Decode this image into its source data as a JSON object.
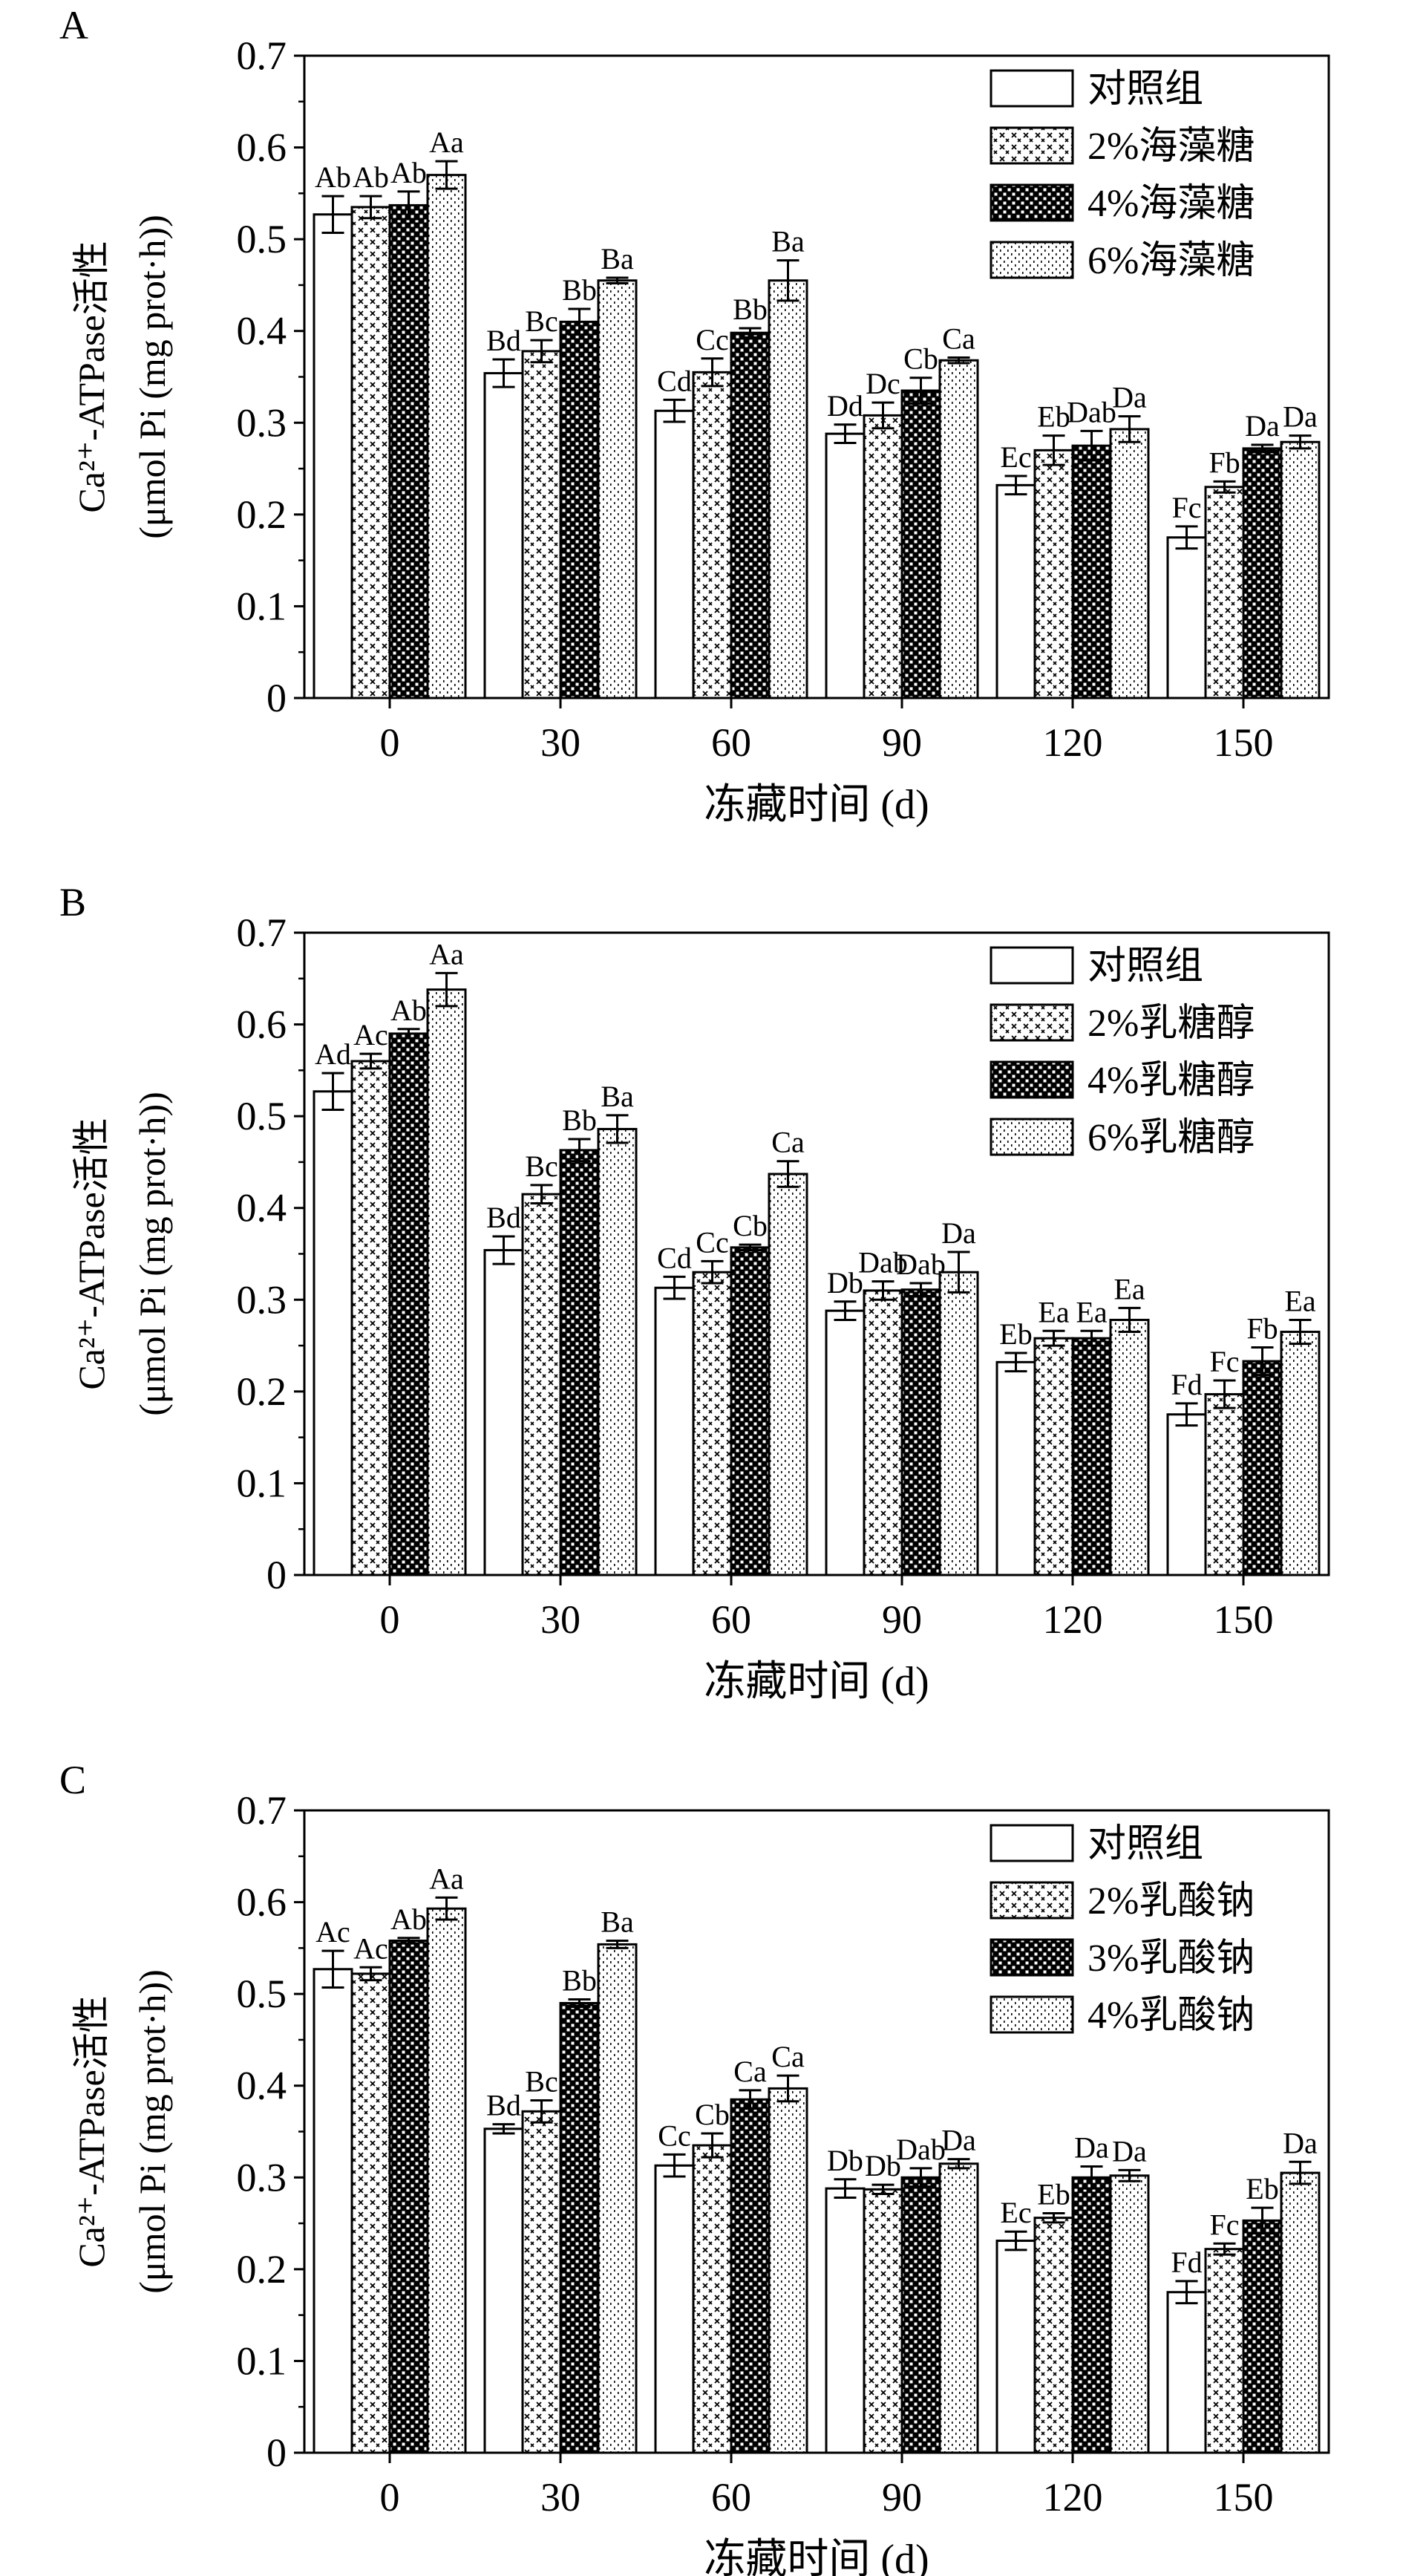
{
  "figure": {
    "y_label_line1": "Ca²⁺-ATPase活性",
    "y_label_line2": "(μmol Pi (mg prot·h))"
  },
  "chart_data": [
    {
      "type": "bar",
      "panel_label": "A",
      "title": "",
      "xlabel": "冻藏时间 (d)",
      "ylabel": "Ca²⁺-ATPase活性 (μmol Pi (mg prot·h))",
      "categories": [
        "0",
        "30",
        "60",
        "90",
        "120",
        "150"
      ],
      "ylim": [
        0,
        0.7
      ],
      "yticks": [
        "0",
        "0.1",
        "0.2",
        "0.3",
        "0.4",
        "0.5",
        "0.6",
        "0.7"
      ],
      "legend_position": "top-right",
      "series": [
        {
          "name": "对照组",
          "pattern": "blank",
          "values": [
            0.527,
            0.354,
            0.313,
            0.288,
            0.232,
            0.175
          ],
          "errors": [
            0.02,
            0.015,
            0.012,
            0.01,
            0.01,
            0.012
          ],
          "labels": [
            "Ab",
            "Bd",
            "Cd",
            "Dd",
            "Ec",
            "Fc"
          ]
        },
        {
          "name": "2%海藻糖",
          "pattern": "cross",
          "values": [
            0.535,
            0.378,
            0.355,
            0.308,
            0.27,
            0.23
          ],
          "errors": [
            0.012,
            0.012,
            0.015,
            0.014,
            0.016,
            0.006
          ],
          "labels": [
            "Ab",
            "Bc",
            "Cc",
            "Dc",
            "Eb",
            "Fb"
          ]
        },
        {
          "name": "4%海藻糖",
          "pattern": "check",
          "values": [
            0.537,
            0.41,
            0.398,
            0.335,
            0.275,
            0.272
          ],
          "errors": [
            0.015,
            0.014,
            0.005,
            0.014,
            0.016,
            0.004
          ],
          "labels": [
            "Ab",
            "Bb",
            "Bb",
            "Cb",
            "Dab",
            "Da"
          ]
        },
        {
          "name": "6%海藻糖",
          "pattern": "dots",
          "values": [
            0.57,
            0.455,
            0.455,
            0.368,
            0.293,
            0.279
          ],
          "errors": [
            0.015,
            0.003,
            0.022,
            0.003,
            0.014,
            0.007
          ],
          "labels": [
            "Aa",
            "Ba",
            "Ba",
            "Ca",
            "Da",
            "Da"
          ]
        }
      ]
    },
    {
      "type": "bar",
      "panel_label": "B",
      "title": "",
      "xlabel": "冻藏时间 (d)",
      "ylabel": "Ca²⁺-ATPase活性 (μmol Pi (mg prot·h))",
      "categories": [
        "0",
        "30",
        "60",
        "90",
        "120",
        "150"
      ],
      "ylim": [
        0,
        0.7
      ],
      "yticks": [
        "0",
        "0.1",
        "0.2",
        "0.3",
        "0.4",
        "0.5",
        "0.6",
        "0.7"
      ],
      "legend_position": "top-right",
      "series": [
        {
          "name": "对照组",
          "pattern": "blank",
          "values": [
            0.527,
            0.354,
            0.313,
            0.288,
            0.232,
            0.175
          ],
          "errors": [
            0.02,
            0.015,
            0.012,
            0.01,
            0.01,
            0.012
          ],
          "labels": [
            "Ad",
            "Bd",
            "Cd",
            "Db",
            "Eb",
            "Fd"
          ]
        },
        {
          "name": "2%乳糖醇",
          "pattern": "cross",
          "values": [
            0.56,
            0.415,
            0.33,
            0.31,
            0.258,
            0.197
          ],
          "errors": [
            0.008,
            0.01,
            0.012,
            0.01,
            0.008,
            0.015
          ],
          "labels": [
            "Ac",
            "Bc",
            "Cc",
            "Dab",
            "Ea",
            "Fc"
          ]
        },
        {
          "name": "4%乳糖醇",
          "pattern": "check",
          "values": [
            0.59,
            0.463,
            0.357,
            0.311,
            0.258,
            0.233
          ],
          "errors": [
            0.005,
            0.012,
            0.003,
            0.007,
            0.008,
            0.015
          ],
          "labels": [
            "Ab",
            "Bb",
            "Cb",
            "Dab",
            "Ea",
            "Fb"
          ]
        },
        {
          "name": "6%乳糖醇",
          "pattern": "dots",
          "values": [
            0.638,
            0.486,
            0.437,
            0.33,
            0.278,
            0.265
          ],
          "errors": [
            0.018,
            0.015,
            0.014,
            0.022,
            0.013,
            0.013
          ],
          "labels": [
            "Aa",
            "Ba",
            "Ca",
            "Da",
            "Ea",
            "Ea"
          ]
        }
      ]
    },
    {
      "type": "bar",
      "panel_label": "C",
      "title": "",
      "xlabel": "冻藏时间 (d)",
      "ylabel": "Ca²⁺-ATPase活性 (μmol Pi (mg prot·h))",
      "categories": [
        "0",
        "30",
        "60",
        "90",
        "120",
        "150"
      ],
      "ylim": [
        0,
        0.7
      ],
      "yticks": [
        "0",
        "0.1",
        "0.2",
        "0.3",
        "0.4",
        "0.5",
        "0.6",
        "0.7"
      ],
      "legend_position": "top-right",
      "series": [
        {
          "name": "对照组",
          "pattern": "blank",
          "values": [
            0.527,
            0.353,
            0.313,
            0.288,
            0.231,
            0.175
          ],
          "errors": [
            0.02,
            0.005,
            0.012,
            0.01,
            0.01,
            0.012
          ],
          "labels": [
            "Ac",
            "Bd",
            "Cc",
            "Db",
            "Ec",
            "Fd"
          ]
        },
        {
          "name": "2%乳酸钠",
          "pattern": "cross",
          "values": [
            0.522,
            0.372,
            0.335,
            0.287,
            0.256,
            0.222
          ],
          "errors": [
            0.007,
            0.012,
            0.013,
            0.005,
            0.005,
            0.006
          ],
          "labels": [
            "Ac",
            "Bc",
            "Cb",
            "Db",
            "Eb",
            "Fc"
          ]
        },
        {
          "name": "3%乳酸钠",
          "pattern": "check",
          "values": [
            0.558,
            0.49,
            0.385,
            0.3,
            0.3,
            0.253
          ],
          "errors": [
            0.003,
            0.004,
            0.01,
            0.01,
            0.012,
            0.014
          ],
          "labels": [
            "Ab",
            "Bb",
            "Ca",
            "Dab",
            "Da",
            "Eb"
          ]
        },
        {
          "name": "4%乳酸钠",
          "pattern": "dots",
          "values": [
            0.593,
            0.554,
            0.397,
            0.315,
            0.302,
            0.305
          ],
          "errors": [
            0.012,
            0.004,
            0.014,
            0.005,
            0.006,
            0.012
          ],
          "labels": [
            "Aa",
            "Ba",
            "Ca",
            "Da",
            "Da",
            "Da"
          ]
        }
      ]
    }
  ]
}
